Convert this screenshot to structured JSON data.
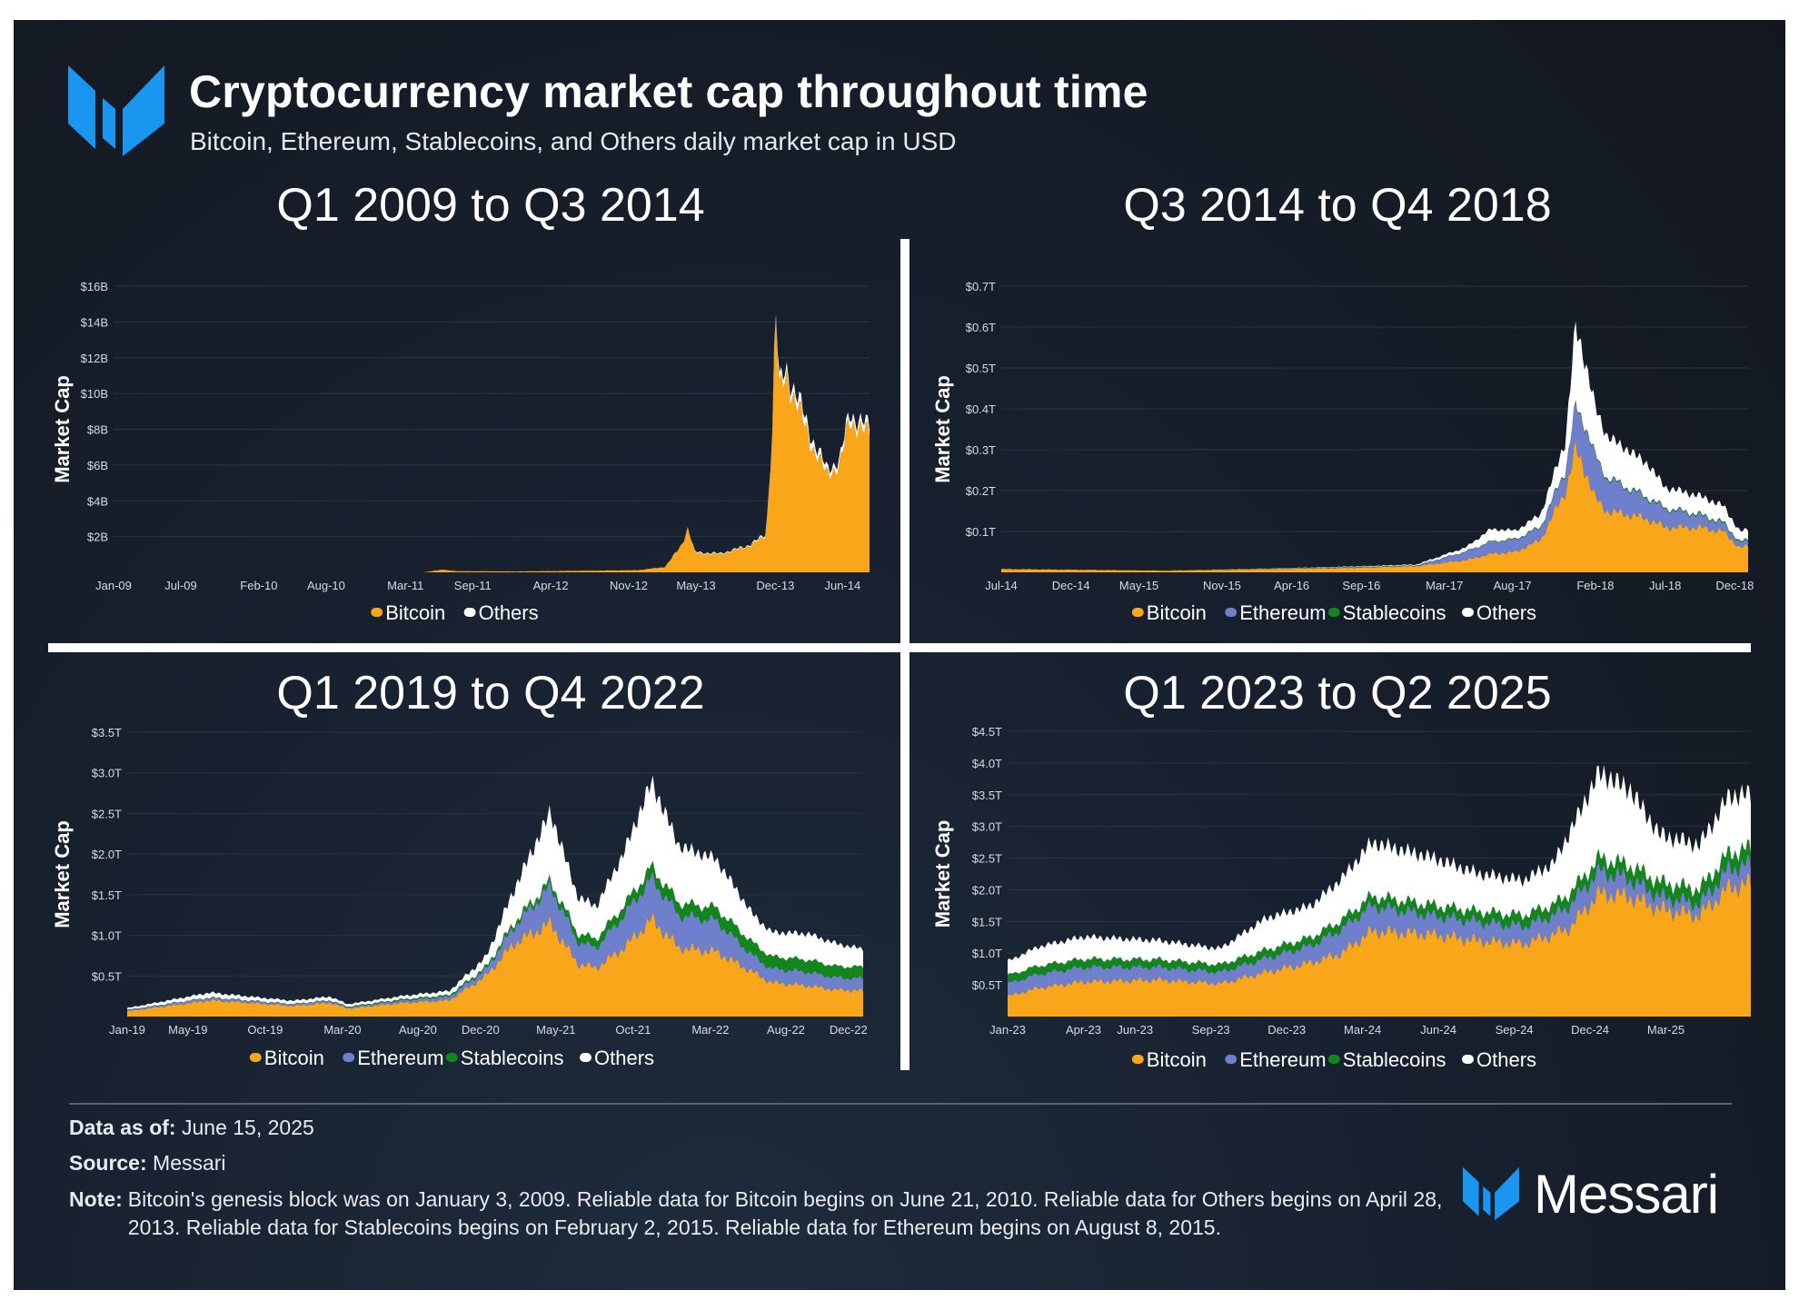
{
  "header": {
    "title": "Cryptocurrency market cap throughout time",
    "subtitle": "Bitcoin, Ethereum, Stablecoins, and Others daily market cap in USD"
  },
  "colors": {
    "bitcoin": "#F9A61A",
    "ethereum": "#6E7FCC",
    "stablecoins": "#12861C",
    "others": "#FFFFFF",
    "brand": "#1A95F0"
  },
  "footer": {
    "data_as_of_label": "Data as of:",
    "data_as_of_value": "June 15, 2025",
    "source_label": "Source:",
    "source_value": "Messari",
    "note_label": "Note:",
    "note_value": "Bitcoin's genesis block was on January 3, 2009. Reliable data for Bitcoin begins on June 21, 2010. Reliable data for Others begins on April 28, 2013. Reliable data for Stablecoins begins on February 2, 2015. Reliable data for Ethereum begins on August 8, 2015.",
    "brand": "Messari"
  },
  "chart_data": [
    {
      "type": "area",
      "stacked": true,
      "title": "Q1 2009 to Q3 2014",
      "ylabel": "Market Cap",
      "xlabel": "",
      "ylim": [
        0,
        16
      ],
      "grid": true,
      "legend_position": "bottom-center",
      "y_ticks": [
        2,
        4,
        6,
        8,
        10,
        12,
        14,
        16
      ],
      "y_tick_labels": [
        "$2B",
        "$4B",
        "$6B",
        "$8B",
        "$10B",
        "$12B",
        "$14B",
        "$16B"
      ],
      "xlim": [
        2009.0,
        2014.62
      ],
      "x_ticks": [
        2009.0,
        2009.5,
        2010.08,
        2010.58,
        2011.17,
        2011.67,
        2012.25,
        2012.83,
        2013.33,
        2013.92,
        2014.42
      ],
      "x_tick_labels": [
        "Jan-09",
        "Jul-09",
        "Feb-10",
        "Aug-10",
        "Mar-11",
        "Sep-11",
        "Apr-12",
        "Nov-12",
        "May-13",
        "Dec-13",
        "Jun-14"
      ],
      "x": [
        2009.0,
        2011.3,
        2011.45,
        2011.55,
        2012.0,
        2012.9,
        2013.1,
        2013.22,
        2013.27,
        2013.32,
        2013.5,
        2013.7,
        2013.85,
        2013.9,
        2013.92,
        2013.95,
        2014.0,
        2014.1,
        2014.2,
        2014.3,
        2014.4,
        2014.47,
        2014.6
      ],
      "series": [
        {
          "name": "Bitcoin",
          "key": "bitcoin",
          "values": [
            0,
            0,
            0.15,
            0.06,
            0.05,
            0.12,
            0.3,
            1.5,
            2.5,
            1.1,
            1.0,
            1.4,
            2.0,
            8,
            15,
            10,
            11,
            9,
            7,
            5.5,
            6,
            8.5,
            7.8
          ]
        },
        {
          "name": "Others",
          "key": "others",
          "values": [
            0,
            0,
            0,
            0,
            0,
            0,
            0,
            0,
            0,
            0.05,
            0.05,
            0.05,
            0.1,
            0.3,
            0.3,
            0.4,
            0.4,
            0.5,
            0.4,
            0.3,
            0.3,
            0.4,
            0.4
          ]
        }
      ]
    },
    {
      "type": "area",
      "stacked": true,
      "title": "Q3 2014 to Q4 2018",
      "ylabel": "Market Cap",
      "xlabel": "",
      "ylim": [
        0,
        0.7
      ],
      "grid": true,
      "legend_position": "bottom-center",
      "y_ticks": [
        0.1,
        0.2,
        0.3,
        0.4,
        0.5,
        0.6,
        0.7
      ],
      "y_tick_labels": [
        "$0.1T",
        "$0.2T",
        "$0.3T",
        "$0.4T",
        "$0.5T",
        "$0.6T",
        "$0.7T"
      ],
      "xlim": [
        2014.5,
        2019.0
      ],
      "x_ticks": [
        2014.5,
        2014.92,
        2015.33,
        2015.83,
        2016.25,
        2016.67,
        2017.17,
        2017.58,
        2018.08,
        2018.5,
        2018.92
      ],
      "x_tick_labels": [
        "Jul-14",
        "Dec-14",
        "May-15",
        "Nov-15",
        "Apr-16",
        "Sep-16",
        "Mar-17",
        "Aug-17",
        "Feb-18",
        "Jul-18",
        "Dec-18"
      ],
      "x": [
        2014.5,
        2015.5,
        2016.5,
        2017.0,
        2017.3,
        2017.45,
        2017.6,
        2017.75,
        2017.9,
        2017.96,
        2018.02,
        2018.08,
        2018.15,
        2018.3,
        2018.4,
        2018.5,
        2018.7,
        2018.85,
        2018.95,
        2019.0
      ],
      "series": [
        {
          "name": "Bitcoin",
          "key": "bitcoin",
          "values": [
            0.008,
            0.004,
            0.01,
            0.015,
            0.03,
            0.045,
            0.05,
            0.08,
            0.2,
            0.3,
            0.25,
            0.18,
            0.15,
            0.14,
            0.13,
            0.11,
            0.11,
            0.1,
            0.06,
            0.065
          ]
        },
        {
          "name": "Ethereum",
          "key": "ethereum",
          "values": [
            0,
            0,
            0.001,
            0.001,
            0.02,
            0.03,
            0.03,
            0.03,
            0.05,
            0.1,
            0.11,
            0.1,
            0.08,
            0.06,
            0.05,
            0.045,
            0.03,
            0.02,
            0.012,
            0.012
          ]
        },
        {
          "name": "Stablecoins",
          "key": "stablecoins",
          "values": [
            0,
            0,
            0.001,
            0.001,
            0.001,
            0.001,
            0.002,
            0.002,
            0.003,
            0.003,
            0.003,
            0.003,
            0.003,
            0.003,
            0.003,
            0.003,
            0.003,
            0.003,
            0.003,
            0.003
          ]
        },
        {
          "name": "Others",
          "key": "others",
          "values": [
            0,
            0,
            0.001,
            0.002,
            0.01,
            0.03,
            0.02,
            0.03,
            0.07,
            0.2,
            0.15,
            0.12,
            0.1,
            0.09,
            0.08,
            0.05,
            0.045,
            0.04,
            0.025,
            0.025
          ]
        }
      ]
    },
    {
      "type": "area",
      "stacked": true,
      "title": "Q1 2019 to Q4 2022",
      "ylabel": "Market Cap",
      "xlabel": "",
      "ylim": [
        0,
        3.5
      ],
      "grid": true,
      "legend_position": "bottom-center",
      "y_ticks": [
        0.5,
        1.0,
        1.5,
        2.0,
        2.5,
        3.0,
        3.5
      ],
      "y_tick_labels": [
        "$0.5T",
        "$1.0T",
        "$1.5T",
        "$2.0T",
        "$2.5T",
        "$3.0T",
        "$3.5T"
      ],
      "xlim": [
        2019.0,
        2023.0
      ],
      "x_ticks": [
        2019.0,
        2019.33,
        2019.75,
        2020.17,
        2020.58,
        2020.92,
        2021.33,
        2021.75,
        2022.17,
        2022.58,
        2022.92
      ],
      "x_tick_labels": [
        "Jan-19",
        "May-19",
        "Oct-19",
        "Mar-20",
        "Aug-20",
        "Dec-20",
        "May-21",
        "Oct-21",
        "Mar-22",
        "Aug-22",
        "Dec-22"
      ],
      "x": [
        2019.0,
        2019.45,
        2019.6,
        2019.9,
        2020.1,
        2020.2,
        2020.5,
        2020.75,
        2020.95,
        2021.1,
        2021.3,
        2021.45,
        2021.55,
        2021.7,
        2021.85,
        2022.0,
        2022.2,
        2022.4,
        2022.5,
        2022.7,
        2022.85,
        2023.0
      ],
      "series": [
        {
          "name": "Bitcoin",
          "key": "bitcoin",
          "values": [
            0.065,
            0.2,
            0.18,
            0.13,
            0.17,
            0.1,
            0.17,
            0.2,
            0.5,
            0.9,
            1.15,
            0.65,
            0.6,
            0.85,
            1.2,
            0.85,
            0.8,
            0.55,
            0.42,
            0.38,
            0.33,
            0.32
          ]
        },
        {
          "name": "Ethereum",
          "key": "ethereum",
          "values": [
            0.015,
            0.03,
            0.025,
            0.02,
            0.025,
            0.015,
            0.03,
            0.045,
            0.08,
            0.2,
            0.45,
            0.27,
            0.25,
            0.4,
            0.5,
            0.4,
            0.38,
            0.2,
            0.17,
            0.17,
            0.15,
            0.15
          ]
        },
        {
          "name": "Stablecoins",
          "key": "stablecoins",
          "values": [
            0.004,
            0.005,
            0.005,
            0.005,
            0.006,
            0.008,
            0.015,
            0.02,
            0.03,
            0.05,
            0.07,
            0.1,
            0.11,
            0.12,
            0.14,
            0.15,
            0.16,
            0.16,
            0.15,
            0.15,
            0.14,
            0.14
          ]
        },
        {
          "name": "Others",
          "key": "others",
          "values": [
            0.02,
            0.06,
            0.05,
            0.04,
            0.045,
            0.03,
            0.04,
            0.05,
            0.12,
            0.4,
            0.85,
            0.45,
            0.4,
            0.65,
            1.05,
            0.7,
            0.6,
            0.35,
            0.3,
            0.32,
            0.28,
            0.22
          ]
        }
      ]
    },
    {
      "type": "area",
      "stacked": true,
      "title": "Q1 2023 to Q2 2025",
      "ylabel": "Market Cap",
      "xlabel": "",
      "ylim": [
        0,
        4.5
      ],
      "grid": true,
      "legend_position": "bottom-center",
      "y_ticks": [
        0.5,
        1.0,
        1.5,
        2.0,
        2.5,
        3.0,
        3.5,
        4.0,
        4.5
      ],
      "y_tick_labels": [
        "$0.5T",
        "$1.0T",
        "$1.5T",
        "$2.0T",
        "$2.5T",
        "$3.0T",
        "$3.5T",
        "$4.0T",
        "$4.5T"
      ],
      "xlim": [
        2023.0,
        2025.45
      ],
      "x_ticks": [
        2023.0,
        2023.25,
        2023.42,
        2023.67,
        2023.92,
        2024.17,
        2024.42,
        2024.67,
        2024.92,
        2025.17
      ],
      "x_tick_labels": [
        "Jan-23",
        "Apr-23",
        "Jun-23",
        "Sep-23",
        "Dec-23",
        "Mar-24",
        "Jun-24",
        "Sep-24",
        "Dec-24",
        "Mar-25"
      ],
      "x": [
        2023.0,
        2023.1,
        2023.25,
        2023.5,
        2023.7,
        2023.85,
        2024.0,
        2024.1,
        2024.2,
        2024.4,
        2024.55,
        2024.7,
        2024.8,
        2024.85,
        2024.95,
        2025.05,
        2025.15,
        2025.28,
        2025.38,
        2025.45
      ],
      "series": [
        {
          "name": "Bitcoin",
          "key": "bitcoin",
          "values": [
            0.32,
            0.45,
            0.55,
            0.58,
            0.52,
            0.7,
            0.85,
            1.0,
            1.35,
            1.3,
            1.2,
            1.15,
            1.3,
            1.4,
            1.95,
            1.9,
            1.7,
            1.6,
            2.05,
            2.1
          ]
        },
        {
          "name": "Ethereum",
          "key": "ethereum",
          "values": [
            0.2,
            0.22,
            0.23,
            0.2,
            0.18,
            0.22,
            0.27,
            0.38,
            0.4,
            0.3,
            0.3,
            0.28,
            0.3,
            0.35,
            0.35,
            0.28,
            0.2,
            0.18,
            0.3,
            0.3
          ]
        },
        {
          "name": "Stablecoins",
          "key": "stablecoins",
          "values": [
            0.13,
            0.13,
            0.13,
            0.12,
            0.12,
            0.13,
            0.13,
            0.14,
            0.15,
            0.16,
            0.16,
            0.17,
            0.17,
            0.18,
            0.2,
            0.21,
            0.22,
            0.23,
            0.24,
            0.25
          ]
        },
        {
          "name": "Others",
          "key": "others",
          "values": [
            0.22,
            0.3,
            0.35,
            0.3,
            0.25,
            0.5,
            0.5,
            0.65,
            0.85,
            0.75,
            0.6,
            0.55,
            0.65,
            0.95,
            1.35,
            1.2,
            0.75,
            0.7,
            0.9,
            0.85
          ]
        }
      ]
    }
  ]
}
